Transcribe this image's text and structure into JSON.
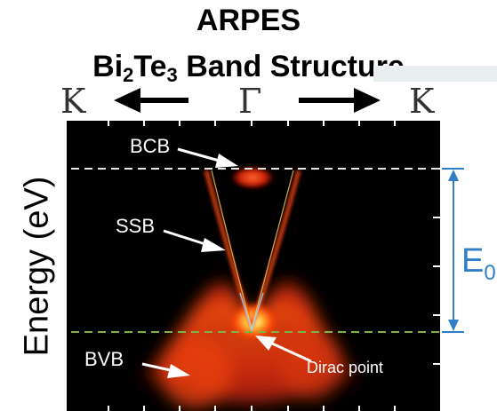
{
  "title": {
    "line1": "ARPES",
    "line2_prefix": "Bi",
    "line2_sub1": "2",
    "line2_mid": "Te",
    "line2_sub2": "3",
    "line2_suffix": " Band Structure"
  },
  "k_labels": {
    "left": "K",
    "center": "Γ",
    "right": "K"
  },
  "y_axis_label": "Energy (eV)",
  "annotations": {
    "bcb": "BCB",
    "ssb": "SSB",
    "bvb": "BVB",
    "dirac_point": "Dirac point"
  },
  "energy_gap": {
    "symbol": "E",
    "subscript": "0"
  },
  "colors": {
    "bcb_line": "#e6e6e6",
    "dirac_line": "#7fb24a",
    "gap_arrow": "#2f7fc8",
    "band": "#ff4a14",
    "background": "#000000"
  }
}
